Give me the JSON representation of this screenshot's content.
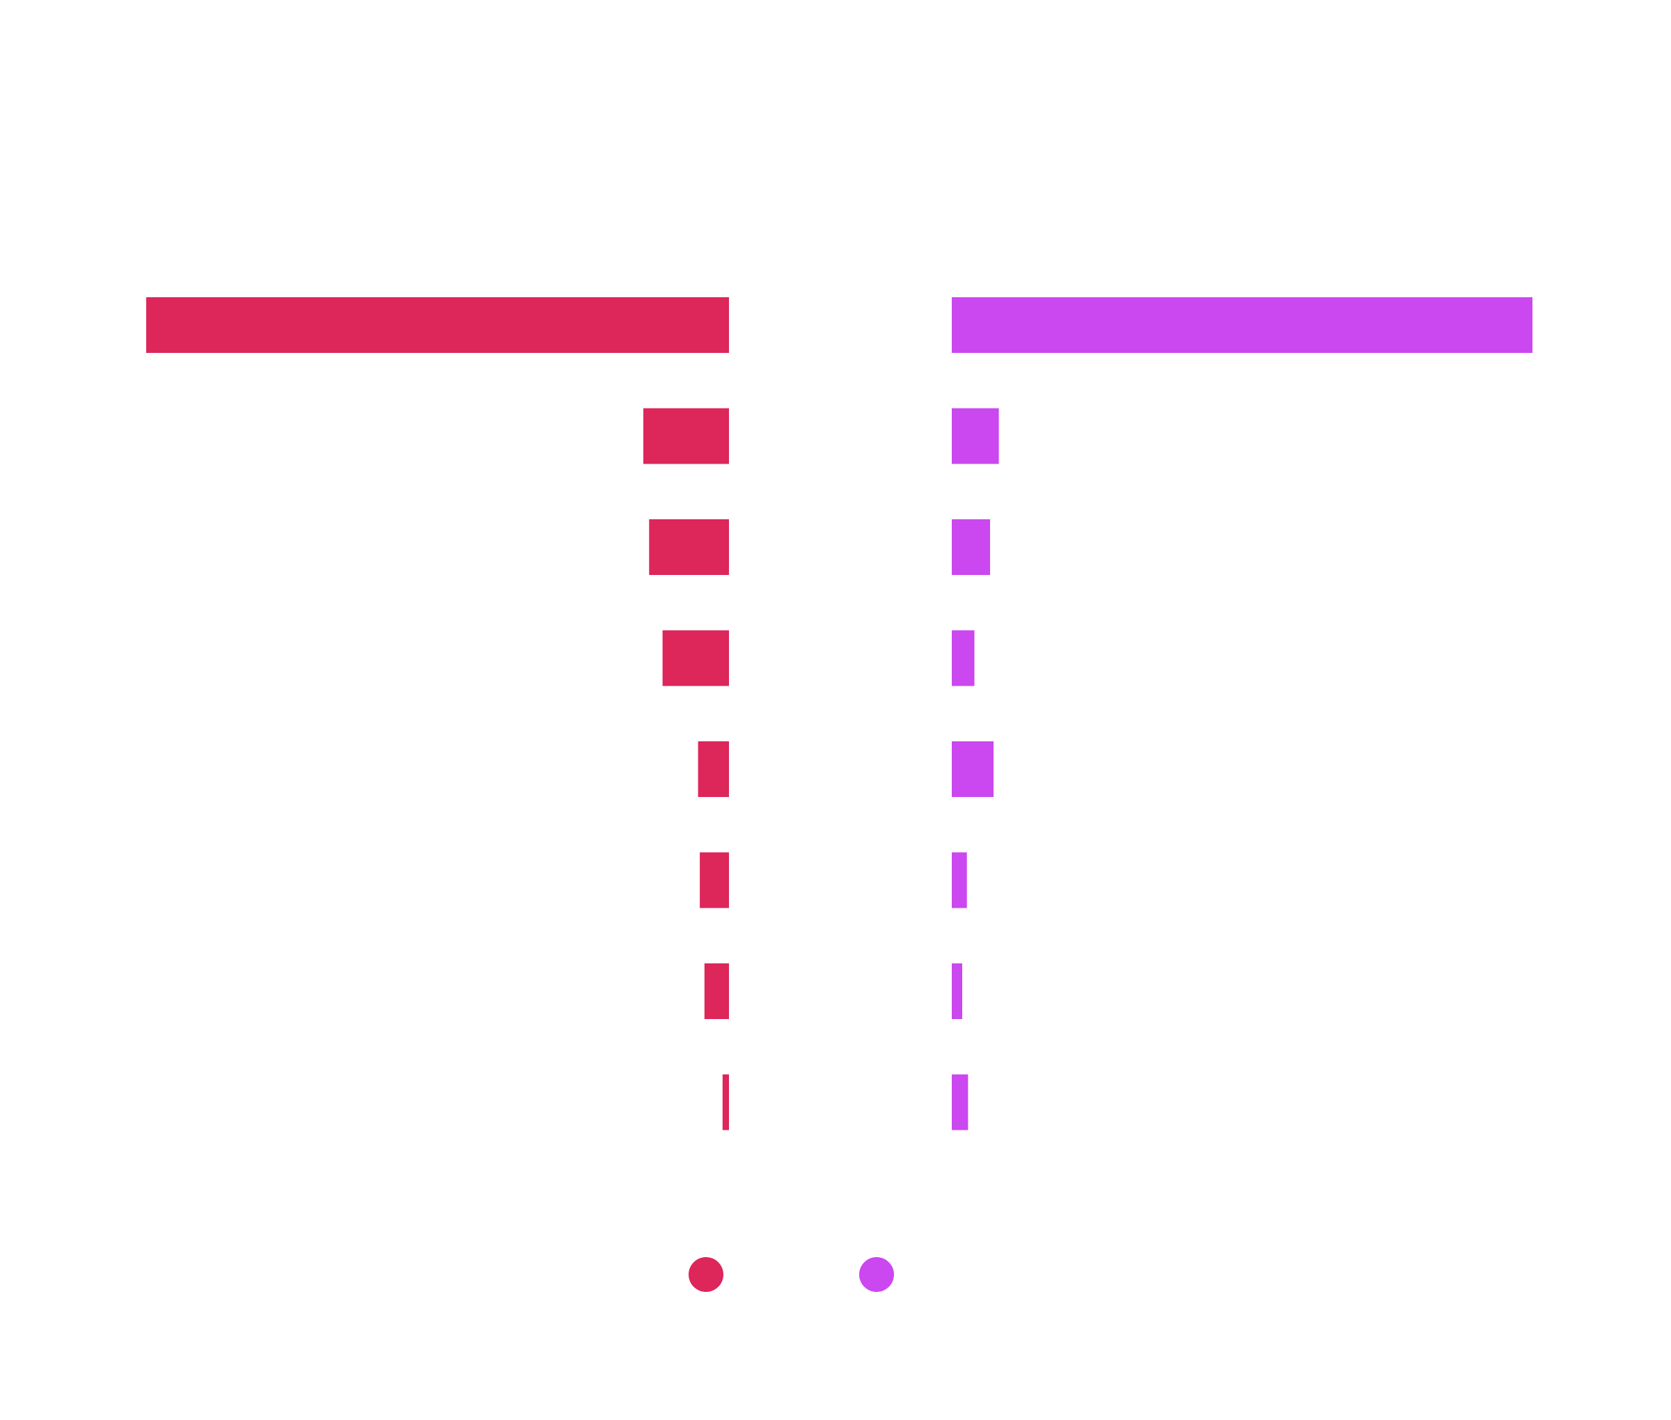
{
  "chart_data": {
    "type": "bar",
    "layout": "diverging-horizontal",
    "title": "",
    "xlabel": "",
    "ylabel": "",
    "grid": false,
    "legend_placement": "bottom-center",
    "categories": [
      "",
      "",
      "",
      "",
      "",
      "",
      "",
      ""
    ],
    "series": [
      {
        "color": "#dd265a",
        "values": [
          100,
          14.7,
          13.7,
          11.4,
          5.3,
          5.0,
          4.2,
          1.1
        ]
      },
      {
        "color": "#cb47f0",
        "values": [
          100,
          8.1,
          6.6,
          3.9,
          7.2,
          2.6,
          1.8,
          2.8
        ]
      }
    ]
  }
}
